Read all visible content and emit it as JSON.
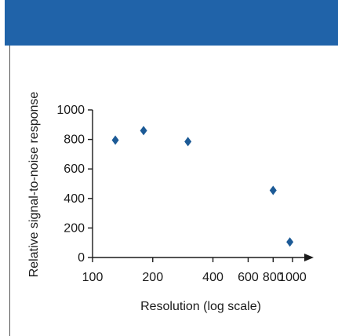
{
  "colors": {
    "header": "#2063a9",
    "marker": "#1c5a96",
    "axis": "#1a1a1a"
  },
  "chart_data": {
    "type": "scatter",
    "title": "",
    "xlabel": "Resolution (log scale)",
    "ylabel": "Relative signal-to-noise response",
    "x_scale": "log",
    "xlim": [
      100,
      1150
    ],
    "ylim": [
      0,
      1000
    ],
    "x_ticks": [
      100,
      200,
      400,
      600,
      800,
      1000
    ],
    "x_tick_labels": [
      "100",
      "200",
      "400",
      "600",
      "800",
      "1000"
    ],
    "y_ticks": [
      0,
      200,
      400,
      600,
      800,
      1000
    ],
    "y_tick_labels": [
      "0",
      "200",
      "400",
      "600",
      "800",
      "1000"
    ],
    "marker": "diamond",
    "grid": false,
    "legend": "none",
    "points": [
      {
        "x": 130,
        "y": 795
      },
      {
        "x": 180,
        "y": 860
      },
      {
        "x": 300,
        "y": 785
      },
      {
        "x": 800,
        "y": 455
      },
      {
        "x": 970,
        "y": 105
      }
    ]
  }
}
